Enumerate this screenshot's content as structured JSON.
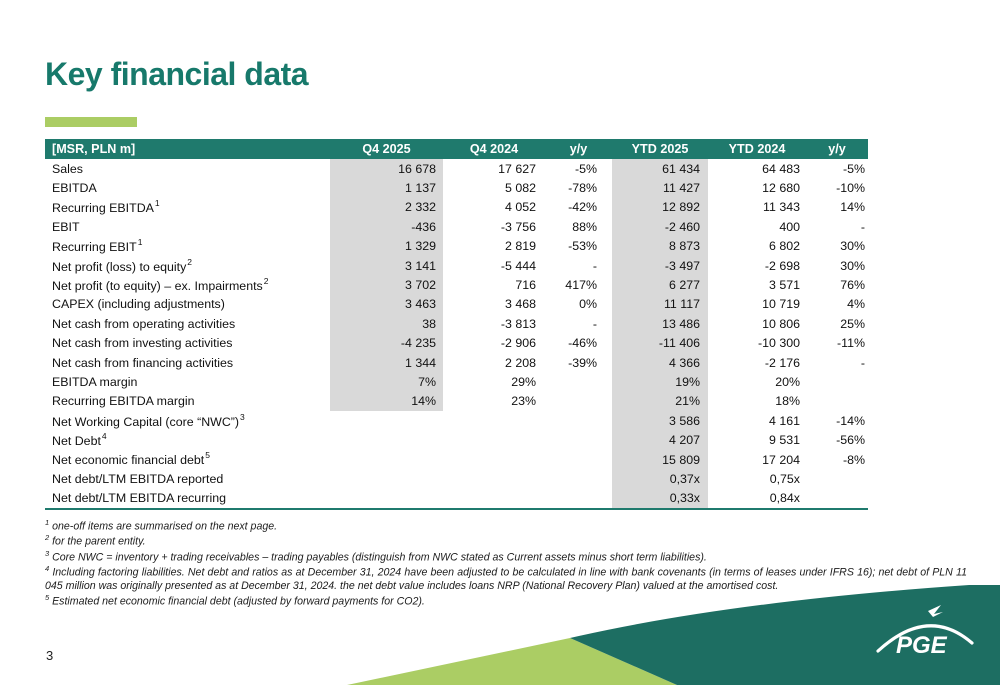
{
  "slide": {
    "title": "Key financial data",
    "page_number": "3"
  },
  "table": {
    "headers": [
      "[MSR, PLN m]",
      "Q4 2025",
      "Q4 2024",
      "y/y",
      "YTD 2025",
      "YTD 2024",
      "y/y"
    ],
    "rows": [
      {
        "label": "Sales",
        "sup": "",
        "values": [
          "16 678",
          "17 627",
          "-5%",
          "61 434",
          "64 483",
          "-5%"
        ],
        "q4_shaded": true
      },
      {
        "label": "EBITDA",
        "sup": "",
        "values": [
          "1 137",
          "5 082",
          "-78%",
          "11 427",
          "12 680",
          "-10%"
        ],
        "q4_shaded": true
      },
      {
        "label": "Recurring EBITDA",
        "sup": "1",
        "values": [
          "2 332",
          "4 052",
          "-42%",
          "12 892",
          "11 343",
          "14%"
        ],
        "q4_shaded": true
      },
      {
        "label": "EBIT",
        "sup": "",
        "values": [
          "-436",
          "-3 756",
          "88%",
          "-2 460",
          "400",
          "-"
        ],
        "q4_shaded": true
      },
      {
        "label": "Recurring EBIT",
        "sup": "1",
        "values": [
          "1 329",
          "2 819",
          "-53%",
          "8 873",
          "6 802",
          "30%"
        ],
        "q4_shaded": true
      },
      {
        "label": "Net profit (loss) to equity",
        "sup": "2",
        "values": [
          "3 141",
          "-5 444",
          "-",
          "-3 497",
          "-2 698",
          "30%"
        ],
        "q4_shaded": true
      },
      {
        "label": "Net profit (to equity) – ex. Impairments",
        "sup": "2",
        "values": [
          "3 702",
          "716",
          "417%",
          "6 277",
          "3 571",
          "76%"
        ],
        "q4_shaded": true
      },
      {
        "label": "CAPEX (including adjustments)",
        "sup": "",
        "values": [
          "3 463",
          "3 468",
          "0%",
          "11 117",
          "10 719",
          "4%"
        ],
        "q4_shaded": true
      },
      {
        "label": "Net cash from operating activities",
        "sup": "",
        "values": [
          "38",
          "-3 813",
          "-",
          "13 486",
          "10 806",
          "25%"
        ],
        "q4_shaded": true
      },
      {
        "label": "Net cash from investing activities",
        "sup": "",
        "values": [
          "-4 235",
          "-2 906",
          "-46%",
          "-11 406",
          "-10 300",
          "-11%"
        ],
        "q4_shaded": true
      },
      {
        "label": "Net cash from financing activities",
        "sup": "",
        "values": [
          "1 344",
          "2 208",
          "-39%",
          "4 366",
          "-2 176",
          "-"
        ],
        "q4_shaded": true
      },
      {
        "label": "EBITDA margin",
        "sup": "",
        "values": [
          "7%",
          "29%",
          "",
          "19%",
          "20%",
          ""
        ],
        "q4_shaded": true
      },
      {
        "label": "Recurring EBITDA margin",
        "sup": "",
        "values": [
          "14%",
          "23%",
          "",
          "21%",
          "18%",
          ""
        ],
        "q4_shaded": true
      },
      {
        "label": "Net Working Capital (core “NWC”)",
        "sup": "3",
        "values": [
          "",
          "",
          "",
          "3 586",
          "4 161",
          "-14%"
        ],
        "q4_shaded": false
      },
      {
        "label": "Net Debt",
        "sup": "4",
        "values": [
          "",
          "",
          "",
          "4 207",
          "9 531",
          "-56%"
        ],
        "q4_shaded": false
      },
      {
        "label": "Net economic financial debt",
        "sup": "5",
        "values": [
          "",
          "",
          "",
          "15 809",
          "17 204",
          "-8%"
        ],
        "q4_shaded": false
      },
      {
        "label": "Net debt/LTM EBITDA reported",
        "sup": "",
        "values": [
          "",
          "",
          "",
          "0,37x",
          "0,75x",
          ""
        ],
        "q4_shaded": false
      },
      {
        "label": "Net debt/LTM EBITDA recurring",
        "sup": "",
        "values": [
          "",
          "",
          "",
          "0,33x",
          "0,84x",
          ""
        ],
        "q4_shaded": false
      }
    ]
  },
  "footnotes": [
    {
      "sup": "1",
      "text": "one-off items are summarised on the next page."
    },
    {
      "sup": "2",
      "text": "for the parent entity."
    },
    {
      "sup": "3",
      "text": "Core NWC = inventory + trading receivables – trading payables (distinguish from NWC stated as Current assets minus short term liabilities)."
    },
    {
      "sup": "4",
      "text": "Including factoring liabilities. Net debt and ratios as at December 31, 2024 have been adjusted to be calculated in line with bank covenants (in terms of leases under IFRS 16); net debt of PLN 11 045 million was originally presented as at December 31, 2024. the net debt value includes loans NRP (National Recovery Plan) valued at the amortised cost.",
      "justify": true
    },
    {
      "sup": "5",
      "text": "Estimated net economic financial debt (adjusted by forward payments for CO2)."
    }
  ],
  "logo": {
    "text": "PGE"
  },
  "colors": {
    "teal_header": "#1f7a6d",
    "teal_wedge": "#1d6e62",
    "lime": "#abcd64",
    "shade": "#d9d9d9",
    "title": "#17796b"
  }
}
